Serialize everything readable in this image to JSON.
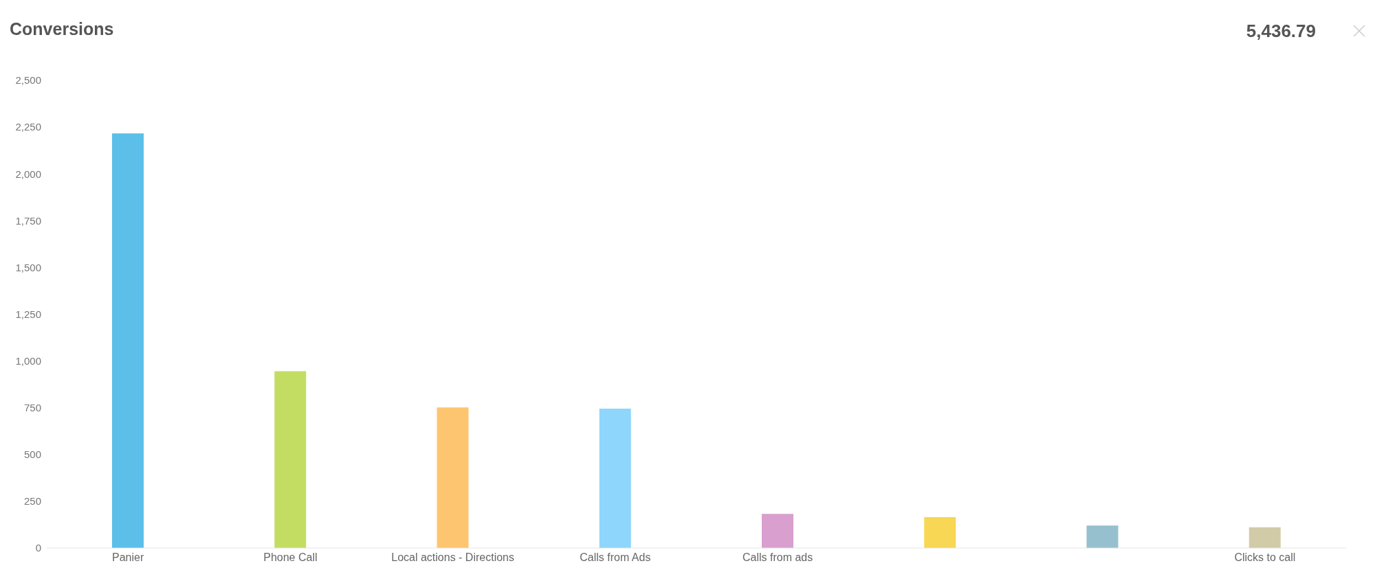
{
  "chart_data": {
    "type": "bar",
    "title": "Conversions",
    "annotations": [
      "5,436.79"
    ],
    "categories": [
      "Panier",
      "Phone Call",
      "Local actions - Directions",
      "Calls from Ads",
      "Calls from ads",
      null,
      null,
      "Clicks to call"
    ],
    "values": [
      2216,
      945,
      752,
      745,
      183,
      165,
      120,
      111
    ],
    "colors": [
      "#5bbfea",
      "#c3dd63",
      "#fdc56f",
      "#8ed6fb",
      "#d89fcf",
      "#f7d753",
      "#97c0cf",
      "#d1cba7"
    ],
    "ylim": [
      0,
      2500
    ],
    "yticks": [
      0,
      250,
      500,
      750,
      {
        "value": 1000,
        "label": "1,000"
      },
      {
        "value": 1250,
        "label": "1,250"
      },
      {
        "value": 1500,
        "label": "1,500"
      },
      {
        "value": 1750,
        "label": "1,750"
      },
      {
        "value": 2000,
        "label": "2,000"
      },
      {
        "value": 2250,
        "label": "2,250"
      },
      {
        "value": 2500,
        "label": "2,500"
      }
    ],
    "grid": false
  }
}
